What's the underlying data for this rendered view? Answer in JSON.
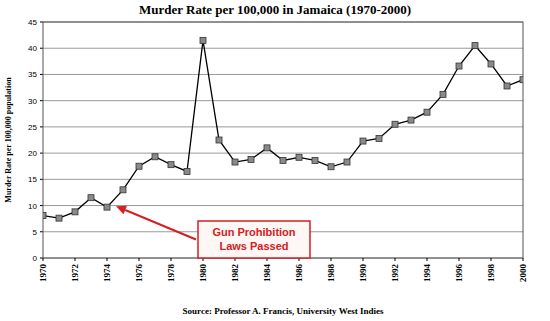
{
  "chart_data": {
    "type": "line",
    "title": "Murder Rate per 100,000 in Jamaica (1970-2000)",
    "y_label": "Murder Rate per 100,000 population",
    "source": "Source: Professor A. Francis, University West Indies",
    "x": [
      1970,
      1971,
      1972,
      1973,
      1974,
      1975,
      1976,
      1977,
      1978,
      1979,
      1980,
      1981,
      1982,
      1983,
      1984,
      1985,
      1986,
      1987,
      1988,
      1989,
      1990,
      1991,
      1992,
      1993,
      1994,
      1995,
      1996,
      1997,
      1998,
      1999,
      2000
    ],
    "values": [
      8.1,
      7.6,
      8.8,
      11.5,
      9.7,
      13,
      17.5,
      19.3,
      17.8,
      16.5,
      41.5,
      22.5,
      18.3,
      18.8,
      21,
      18.6,
      19.2,
      18.6,
      17.4,
      18.3,
      22.3,
      22.8,
      25.5,
      26.3,
      27.8,
      31.2,
      36.6,
      40.5,
      37,
      32.8,
      34
    ],
    "color": "#000000",
    "marker": "square",
    "xlim": [
      1970,
      2000
    ],
    "xticks": [
      1970,
      1972,
      1974,
      1976,
      1978,
      1980,
      1982,
      1984,
      1986,
      1988,
      1990,
      1992,
      1994,
      1996,
      1998,
      2000
    ],
    "ylim": [
      0,
      45
    ],
    "yticks": [
      0,
      5,
      10,
      15,
      20,
      25,
      30,
      35,
      40,
      45
    ],
    "grid": true,
    "annotations": [
      {
        "text": "Gun Prohibition Laws Passed",
        "x": 1974
      }
    ]
  }
}
